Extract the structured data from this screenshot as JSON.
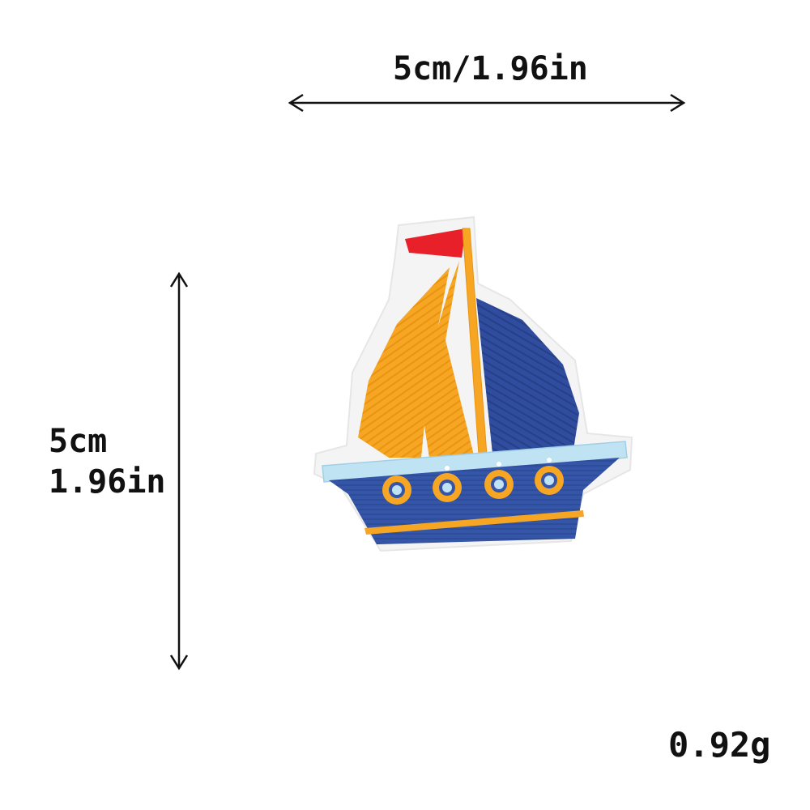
{
  "dimensions": {
    "width_label": "5cm/1.96in",
    "height_label_cm": "5cm",
    "height_label_in": "1.96in"
  },
  "weight_label": "0.92g",
  "product": {
    "subject": "sailboat embroidered patch",
    "colors": {
      "orange_sail": "#f6a623",
      "blue_sail": "#2f4c9e",
      "hull_blue": "#3556a8",
      "flag_red": "#e8202a",
      "trim_light_blue": "#bfe3f2",
      "felt_white": "#f4f4f4"
    }
  }
}
